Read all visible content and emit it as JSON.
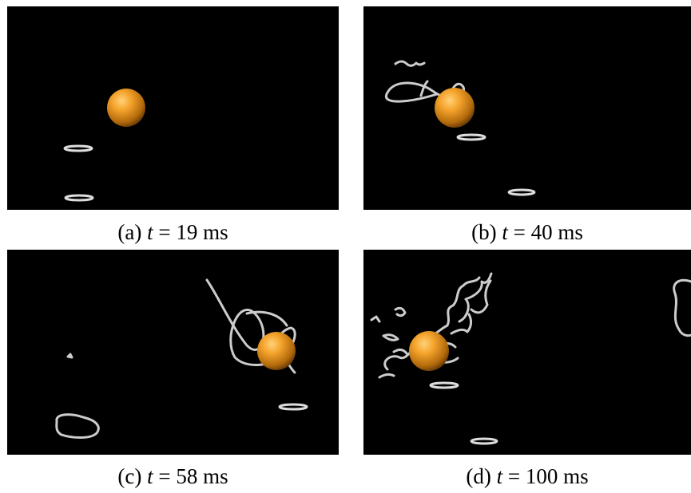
{
  "panels": [
    {
      "caption": {
        "label": "(a)",
        "variable": "t",
        "rest": "= 19 ms"
      }
    },
    {
      "caption": {
        "label": "(b)",
        "variable": "t",
        "rest": "= 40 ms"
      }
    },
    {
      "caption": {
        "label": "(c)",
        "variable": "t",
        "rest": "= 58 ms"
      }
    },
    {
      "caption": {
        "label": "(d)",
        "variable": "t",
        "rest": "= 100 ms"
      }
    }
  ]
}
